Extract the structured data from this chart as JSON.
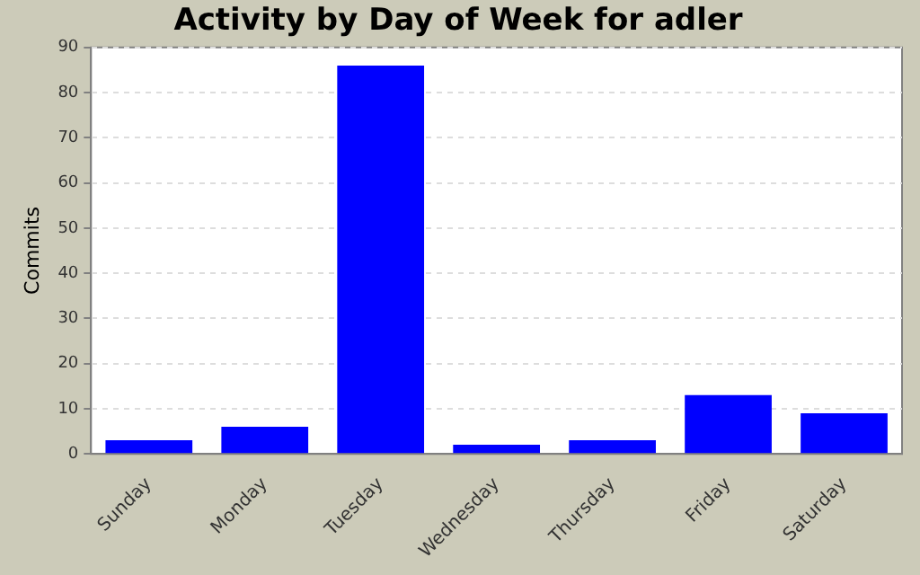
{
  "chart_data": {
    "type": "bar",
    "title": "Activity by Day of Week for adler",
    "ylabel": "Commits",
    "categories": [
      "Sunday",
      "Monday",
      "Tuesday",
      "Wednesday",
      "Thursday",
      "Friday",
      "Saturday"
    ],
    "values": [
      3,
      6,
      86,
      2,
      3,
      13,
      9
    ],
    "color": "#0000ff",
    "ylim": [
      0,
      90
    ],
    "yticks": [
      0,
      10,
      20,
      30,
      40,
      50,
      60,
      70,
      80,
      90
    ],
    "grid": "y",
    "legend": false
  }
}
